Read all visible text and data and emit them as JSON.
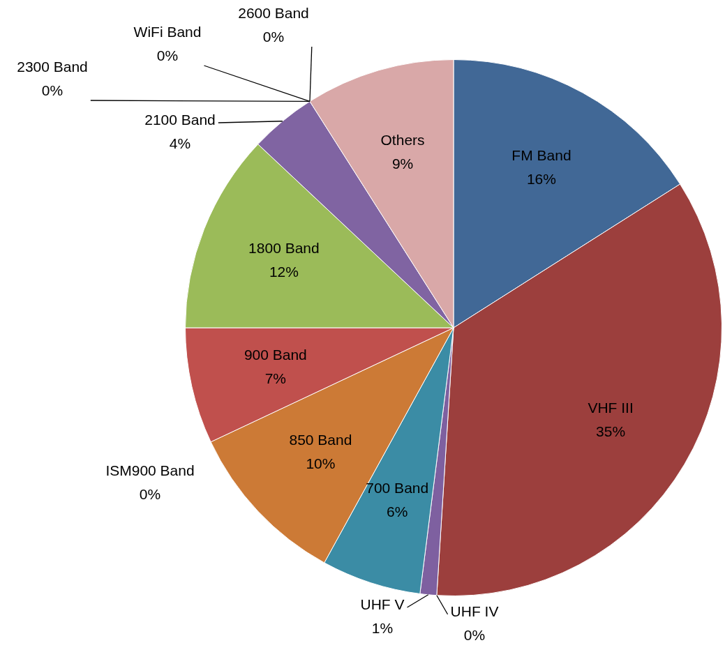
{
  "chart_data": {
    "type": "pie",
    "categories": [
      "FM Band",
      "VHF III",
      "UHF IV",
      "UHF V",
      "700 Band",
      "850 Band",
      "ISM900 Band",
      "900 Band",
      "1800 Band",
      "2100 Band",
      "2300 Band",
      "WiFi Band",
      "2600 Band",
      "Others"
    ],
    "values": [
      16,
      35,
      0,
      1,
      6,
      10,
      0,
      7,
      12,
      4,
      0,
      0,
      0,
      9
    ],
    "value_labels": [
      "16%",
      "35%",
      "0%",
      "1%",
      "6%",
      "10%",
      "0%",
      "7%",
      "12%",
      "4%",
      "0%",
      "0%",
      "0%",
      "9%"
    ],
    "colors": [
      "#416896",
      "#9c3f3d",
      "#9bbb59",
      "#7e60a0",
      "#3b8ca5",
      "#cc7a36",
      "#4a6fa5",
      "#c0504d",
      "#9bbb59",
      "#8064a2",
      "#4bacc6",
      "#f79646",
      "#a9bfe0",
      "#d9a8a8"
    ]
  }
}
